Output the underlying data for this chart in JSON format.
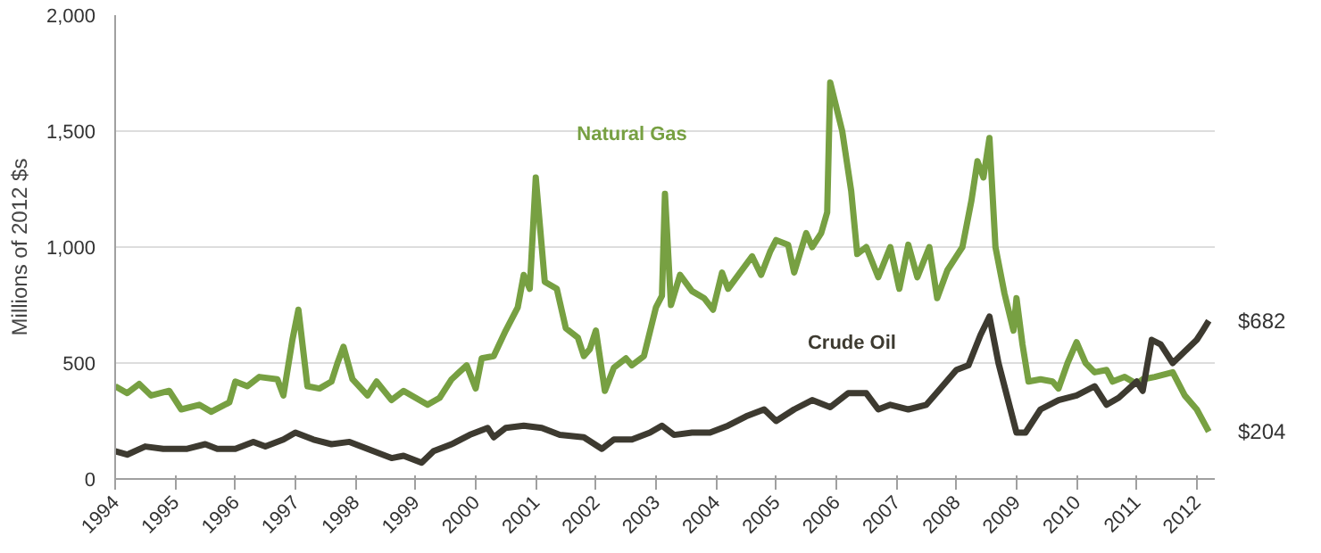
{
  "chart_data": {
    "type": "line",
    "ylabel": "Millions of 2012 $s",
    "xlim": [
      1994,
      2012.3
    ],
    "xticks": [
      1994,
      1995,
      1996,
      1997,
      1998,
      1999,
      2000,
      2001,
      2002,
      2003,
      2004,
      2005,
      2006,
      2007,
      2008,
      2009,
      2010,
      2011,
      2012
    ],
    "ylim": [
      0,
      2000
    ],
    "yticks": [
      0,
      500,
      {
        "value": 1000,
        "label": "1,000"
      },
      {
        "value": 1500,
        "label": "1,500"
      },
      {
        "value": 2000,
        "label": "2,000"
      }
    ],
    "grid": "y",
    "legend": false,
    "line_style": "solid",
    "series": [
      {
        "name": "Natural Gas",
        "color": "#77a042",
        "x": [
          1994.0,
          1994.2,
          1994.4,
          1994.6,
          1994.9,
          1995.1,
          1995.4,
          1995.6,
          1995.9,
          1996.0,
          1996.2,
          1996.4,
          1996.7,
          1996.8,
          1996.95,
          1997.05,
          1997.2,
          1997.4,
          1997.6,
          1997.7,
          1997.8,
          1997.95,
          1998.2,
          1998.35,
          1998.6,
          1998.8,
          1999.0,
          1999.2,
          1999.4,
          1999.6,
          1999.85,
          2000.0,
          2000.1,
          2000.3,
          2000.5,
          2000.7,
          2000.8,
          2000.9,
          2001.0,
          2001.15,
          2001.35,
          2001.5,
          2001.7,
          2001.8,
          2001.9,
          2002.0,
          2002.15,
          2002.3,
          2002.5,
          2002.6,
          2002.8,
          2003.0,
          2003.1,
          2003.15,
          2003.25,
          2003.4,
          2003.6,
          2003.8,
          2003.95,
          2004.1,
          2004.2,
          2004.4,
          2004.6,
          2004.75,
          2004.9,
          2005.0,
          2005.2,
          2005.3,
          2005.5,
          2005.6,
          2005.75,
          2005.85,
          2005.9,
          2006.1,
          2006.25,
          2006.35,
          2006.5,
          2006.7,
          2006.9,
          2007.05,
          2007.2,
          2007.35,
          2007.55,
          2007.68,
          2007.85,
          2008.0,
          2008.1,
          2008.25,
          2008.35,
          2008.45,
          2008.55,
          2008.65,
          2008.8,
          2008.95,
          2009.0,
          2009.1,
          2009.2,
          2009.4,
          2009.6,
          2009.7,
          2009.85,
          2010.0,
          2010.15,
          2010.3,
          2010.5,
          2010.6,
          2010.8,
          2011.0,
          2011.1,
          2011.3,
          2011.6,
          2011.8,
          2012.0,
          2012.2
        ],
        "values": [
          400,
          370,
          410,
          360,
          380,
          300,
          320,
          290,
          330,
          420,
          400,
          440,
          430,
          360,
          600,
          730,
          400,
          390,
          420,
          500,
          570,
          430,
          360,
          420,
          340,
          380,
          350,
          320,
          350,
          430,
          490,
          390,
          520,
          530,
          640,
          740,
          880,
          820,
          1300,
          850,
          820,
          650,
          610,
          530,
          560,
          640,
          380,
          480,
          520,
          490,
          530,
          740,
          790,
          1230,
          750,
          880,
          810,
          780,
          730,
          890,
          820,
          890,
          960,
          880,
          980,
          1030,
          1010,
          890,
          1060,
          1000,
          1060,
          1150,
          1710,
          1500,
          1240,
          970,
          1000,
          870,
          1000,
          820,
          1010,
          870,
          1000,
          780,
          900,
          960,
          1000,
          1200,
          1370,
          1300,
          1470,
          1000,
          800,
          640,
          780,
          580,
          420,
          430,
          420,
          390,
          500,
          590,
          500,
          460,
          470,
          420,
          440,
          410,
          430,
          440,
          460,
          360,
          300,
          204
        ]
      },
      {
        "name": "Crude Oil",
        "color": "#3d3a30",
        "x": [
          1994.0,
          1994.2,
          1994.5,
          1994.8,
          1995.2,
          1995.5,
          1995.7,
          1996.0,
          1996.3,
          1996.5,
          1996.8,
          1997.0,
          1997.3,
          1997.6,
          1997.9,
          1998.2,
          1998.6,
          1998.8,
          1999.1,
          1999.3,
          1999.6,
          1999.9,
          2000.2,
          2000.3,
          2000.5,
          2000.8,
          2001.1,
          2001.4,
          2001.8,
          2002.1,
          2002.3,
          2002.6,
          2002.9,
          2003.1,
          2003.3,
          2003.6,
          2003.9,
          2004.2,
          2004.5,
          2004.8,
          2005.0,
          2005.3,
          2005.6,
          2005.9,
          2006.2,
          2006.5,
          2006.7,
          2006.9,
          2007.2,
          2007.5,
          2007.7,
          2008.0,
          2008.2,
          2008.4,
          2008.55,
          2008.7,
          2008.9,
          2009.0,
          2009.15,
          2009.4,
          2009.7,
          2010.0,
          2010.3,
          2010.5,
          2010.7,
          2011.0,
          2011.1,
          2011.25,
          2011.4,
          2011.6,
          2011.8,
          2012.0,
          2012.1,
          2012.2
        ],
        "values": [
          120,
          105,
          140,
          130,
          130,
          150,
          130,
          130,
          160,
          140,
          170,
          200,
          170,
          150,
          160,
          130,
          90,
          100,
          70,
          120,
          150,
          190,
          220,
          180,
          220,
          230,
          220,
          190,
          180,
          130,
          170,
          170,
          200,
          230,
          190,
          200,
          200,
          230,
          270,
          300,
          250,
          300,
          340,
          310,
          370,
          370,
          300,
          320,
          300,
          320,
          380,
          470,
          490,
          620,
          700,
          500,
          300,
          200,
          200,
          300,
          340,
          360,
          400,
          320,
          350,
          420,
          380,
          600,
          580,
          500,
          550,
          600,
          640,
          682
        ]
      }
    ],
    "annotations": [
      {
        "text": "$682",
        "x": 2012.2,
        "y": 682
      },
      {
        "text": "$204",
        "x": 2012.2,
        "y": 204
      }
    ]
  }
}
